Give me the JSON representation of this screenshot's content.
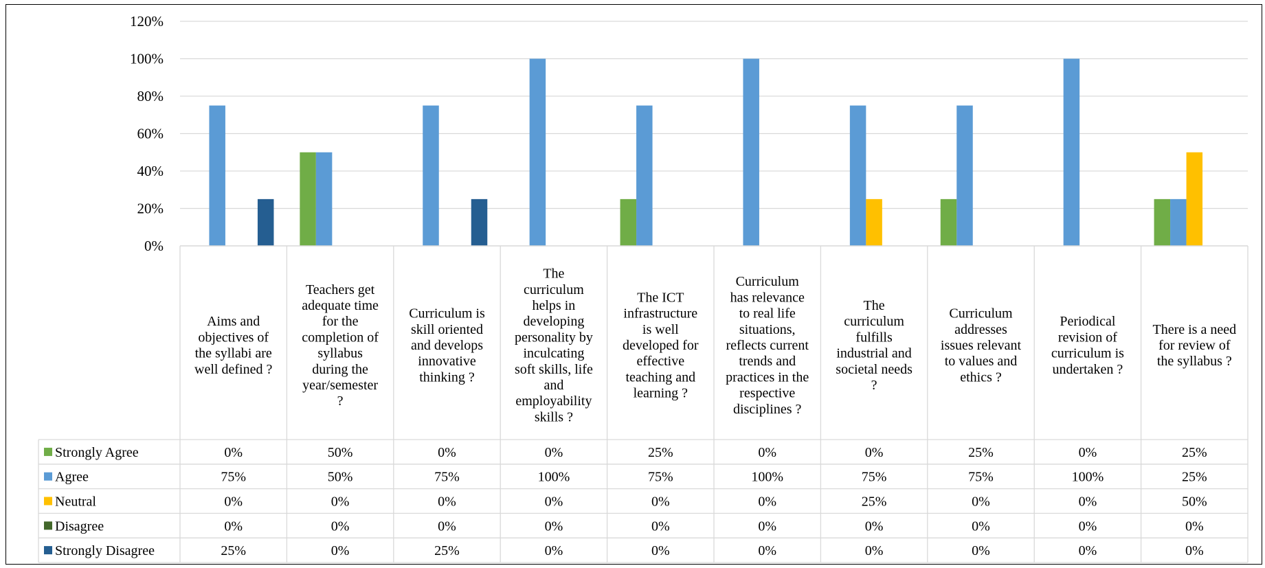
{
  "chart_data": {
    "type": "bar",
    "categories": [
      "Aims and objectives of the syllabi are well defined ?",
      "Teachers get adequate time for the completion of syllabus during the year/semester ?",
      "Curriculum is skill oriented and develops innovative thinking ?",
      "The curriculum helps in developing personality by inculcating soft skills, life and employability skills ?",
      "The ICT infrastructure is well developed for effective teaching and learning ?",
      "Curriculum has relevance to real life situations, reflects current trends and practices in the respective disciplines ?",
      "The curriculum fulfills industrial and societal needs ?",
      "Curriculum addresses issues relevant to values and ethics ?",
      "Periodical revision of curriculum is undertaken ?",
      "There is a need for review of the syllabus ?"
    ],
    "category_lines": [
      [
        "Aims and",
        "objectives of",
        "the syllabi are",
        "well defined ?"
      ],
      [
        "Teachers get",
        "adequate time",
        "for the",
        "completion of",
        "syllabus",
        "during the",
        "year/semester",
        "?"
      ],
      [
        "Curriculum is",
        "skill oriented",
        "and develops",
        "innovative",
        "thinking ?"
      ],
      [
        "The",
        "curriculum",
        "helps in",
        "developing",
        "personality by",
        "inculcating",
        "soft skills, life",
        "and",
        "employability",
        "skills ?"
      ],
      [
        "The ICT",
        "infrastructure",
        "is well",
        "developed for",
        "effective",
        "teaching and",
        "learning ?"
      ],
      [
        "Curriculum",
        "has relevance",
        "to real life",
        "situations,",
        "reflects current",
        "trends and",
        "practices in the",
        "respective",
        "disciplines ?"
      ],
      [
        "The",
        "curriculum",
        "fulfills",
        "industrial and",
        "societal needs",
        "?"
      ],
      [
        "Curriculum",
        "addresses",
        "issues relevant",
        "to values and",
        "ethics ?"
      ],
      [
        "Periodical",
        "revision of",
        "curriculum is",
        "undertaken ?"
      ],
      [
        "There is a need",
        "for review of",
        "the syllabus ?"
      ]
    ],
    "series": [
      {
        "name": "Strongly Agree",
        "color": "#70AD47",
        "values": [
          0,
          50,
          0,
          0,
          25,
          0,
          0,
          25,
          0,
          25
        ]
      },
      {
        "name": "Agree",
        "color": "#5B9BD5",
        "values": [
          75,
          50,
          75,
          100,
          75,
          100,
          75,
          75,
          100,
          25
        ]
      },
      {
        "name": "Neutral",
        "color": "#FFC000",
        "values": [
          0,
          0,
          0,
          0,
          0,
          0,
          25,
          0,
          0,
          50
        ]
      },
      {
        "name": "Disagree",
        "color": "#43682B",
        "values": [
          0,
          0,
          0,
          0,
          0,
          0,
          0,
          0,
          0,
          0
        ]
      },
      {
        "name": "Strongly Disagree",
        "color": "#255E91",
        "values": [
          25,
          0,
          25,
          0,
          0,
          0,
          0,
          0,
          0,
          0
        ]
      }
    ],
    "ylim": [
      0,
      120
    ],
    "yticks": [
      "0%",
      "20%",
      "40%",
      "60%",
      "80%",
      "100%",
      "120%"
    ],
    "y_unit": "%",
    "grid": true,
    "legend": "data table rows below the chart"
  }
}
